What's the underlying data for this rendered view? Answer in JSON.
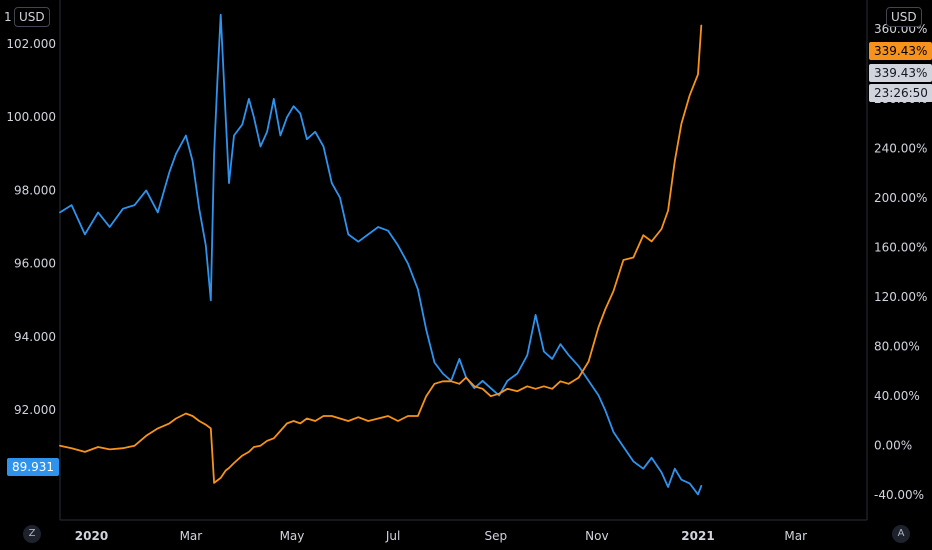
{
  "left_axis": {
    "currency_button": "USD",
    "top_tick_partial": "1",
    "ticks": [
      "102.000",
      "100.000",
      "98.000",
      "96.000",
      "94.000",
      "92.000"
    ],
    "last_value_label": "89.931"
  },
  "right_axis": {
    "currency_button": "USD",
    "top_tick_partial": "360.00%",
    "ticks": [
      "320.00%",
      "280.00%",
      "240.00%",
      "200.00%",
      "160.00%",
      "120.00%",
      "80.00%",
      "40.00%",
      "0.00%",
      "-40.00%"
    ],
    "badge_primary": "339.43%",
    "badge_secondary": "339.43%",
    "badge_countdown": "23:26:50"
  },
  "x_axis": {
    "ticks": [
      "2020",
      "Mar",
      "May",
      "Jul",
      "Sep",
      "Nov",
      "2021",
      "Mar"
    ]
  },
  "corner_buttons": {
    "left": "Z",
    "right": "A"
  },
  "colors": {
    "background": "#000000",
    "blue_series": "#2f93ee",
    "orange_series": "#f7931a",
    "axis_line": "#2a2e39",
    "text": "#d1d4dc"
  },
  "chart_data": {
    "type": "line",
    "x_range": [
      "2019-12-13",
      "2021-04-13"
    ],
    "y_left_range": [
      89.0,
      103.2
    ],
    "y_right_range": [
      -60,
      360
    ],
    "series": [
      {
        "axis": "left",
        "color": "#2f93ee",
        "x": [
          "2019-12-13",
          "2019-12-20",
          "2019-12-28",
          "2020-01-05",
          "2020-01-12",
          "2020-01-20",
          "2020-01-27",
          "2020-02-03",
          "2020-02-10",
          "2020-02-17",
          "2020-02-21",
          "2020-02-27",
          "2020-03-02",
          "2020-03-06",
          "2020-03-10",
          "2020-03-13",
          "2020-03-15",
          "2020-03-17",
          "2020-03-19",
          "2020-03-22",
          "2020-03-24",
          "2020-03-27",
          "2020-04-01",
          "2020-04-05",
          "2020-04-08",
          "2020-04-12",
          "2020-04-16",
          "2020-04-20",
          "2020-04-24",
          "2020-04-28",
          "2020-05-02",
          "2020-05-06",
          "2020-05-10",
          "2020-05-15",
          "2020-05-20",
          "2020-05-25",
          "2020-05-30",
          "2020-06-04",
          "2020-06-10",
          "2020-06-16",
          "2020-06-22",
          "2020-06-28",
          "2020-07-04",
          "2020-07-10",
          "2020-07-16",
          "2020-07-21",
          "2020-07-26",
          "2020-07-31",
          "2020-08-05",
          "2020-08-10",
          "2020-08-14",
          "2020-08-19",
          "2020-08-24",
          "2020-08-29",
          "2020-09-03",
          "2020-09-08",
          "2020-09-14",
          "2020-09-20",
          "2020-09-25",
          "2020-09-30",
          "2020-10-05",
          "2020-10-10",
          "2020-10-15",
          "2020-10-21",
          "2020-10-27",
          "2020-11-02",
          "2020-11-06",
          "2020-11-11",
          "2020-11-17",
          "2020-11-23",
          "2020-11-29",
          "2020-12-04",
          "2020-12-10",
          "2020-12-14",
          "2020-12-18",
          "2020-12-22",
          "2020-12-27",
          "2021-01-01",
          "2021-01-03"
        ],
        "values": [
          97.4,
          97.6,
          96.8,
          97.4,
          97.0,
          97.5,
          97.6,
          98.0,
          97.4,
          98.5,
          99.0,
          99.5,
          98.8,
          97.5,
          96.5,
          95.0,
          99.0,
          101.0,
          102.8,
          100.0,
          98.2,
          99.5,
          99.8,
          100.5,
          100.0,
          99.2,
          99.6,
          100.5,
          99.5,
          100.0,
          100.3,
          100.1,
          99.4,
          99.6,
          99.2,
          98.2,
          97.8,
          96.8,
          96.6,
          96.8,
          97.0,
          96.9,
          96.5,
          96.0,
          95.3,
          94.2,
          93.3,
          93.0,
          92.8,
          93.4,
          92.9,
          92.6,
          92.8,
          92.6,
          92.4,
          92.8,
          93.0,
          93.5,
          94.6,
          93.6,
          93.4,
          93.8,
          93.5,
          93.2,
          92.8,
          92.4,
          92.0,
          91.4,
          91.0,
          90.6,
          90.4,
          90.7,
          90.3,
          89.9,
          90.4,
          90.1,
          90.0,
          89.7,
          89.93
        ]
      },
      {
        "axis": "right",
        "color": "#f7931a",
        "x": [
          "2019-12-13",
          "2019-12-20",
          "2019-12-28",
          "2020-01-05",
          "2020-01-12",
          "2020-01-20",
          "2020-01-27",
          "2020-02-03",
          "2020-02-10",
          "2020-02-17",
          "2020-02-21",
          "2020-02-27",
          "2020-03-02",
          "2020-03-06",
          "2020-03-10",
          "2020-03-13",
          "2020-03-15",
          "2020-03-17",
          "2020-03-19",
          "2020-03-22",
          "2020-03-24",
          "2020-03-27",
          "2020-04-01",
          "2020-04-05",
          "2020-04-08",
          "2020-04-12",
          "2020-04-16",
          "2020-04-20",
          "2020-04-24",
          "2020-04-28",
          "2020-05-02",
          "2020-05-06",
          "2020-05-10",
          "2020-05-15",
          "2020-05-20",
          "2020-05-25",
          "2020-05-30",
          "2020-06-04",
          "2020-06-10",
          "2020-06-16",
          "2020-06-22",
          "2020-06-28",
          "2020-07-04",
          "2020-07-10",
          "2020-07-16",
          "2020-07-21",
          "2020-07-26",
          "2020-07-31",
          "2020-08-05",
          "2020-08-10",
          "2020-08-14",
          "2020-08-19",
          "2020-08-24",
          "2020-08-29",
          "2020-09-03",
          "2020-09-08",
          "2020-09-14",
          "2020-09-20",
          "2020-09-25",
          "2020-09-30",
          "2020-10-05",
          "2020-10-10",
          "2020-10-15",
          "2020-10-21",
          "2020-10-27",
          "2020-11-02",
          "2020-11-06",
          "2020-11-11",
          "2020-11-17",
          "2020-11-23",
          "2020-11-29",
          "2020-12-04",
          "2020-12-10",
          "2020-12-14",
          "2020-12-18",
          "2020-12-22",
          "2020-12-27",
          "2021-01-01",
          "2021-01-03"
        ],
        "values": [
          0,
          -2,
          -5,
          -1,
          -3,
          -2,
          0,
          8,
          14,
          18,
          22,
          26,
          24,
          20,
          17,
          14,
          -30,
          -28,
          -26,
          -20,
          -18,
          -14,
          -8,
          -5,
          -1,
          0,
          4,
          6,
          12,
          18,
          20,
          18,
          22,
          20,
          24,
          24,
          22,
          20,
          23,
          20,
          22,
          24,
          20,
          24,
          24,
          40,
          50,
          52,
          52,
          50,
          55,
          48,
          46,
          40,
          42,
          46,
          44,
          48,
          46,
          48,
          46,
          52,
          50,
          55,
          68,
          96,
          110,
          125,
          150,
          152,
          170,
          165,
          175,
          190,
          230,
          260,
          283,
          300,
          339.43
        ]
      }
    ]
  }
}
